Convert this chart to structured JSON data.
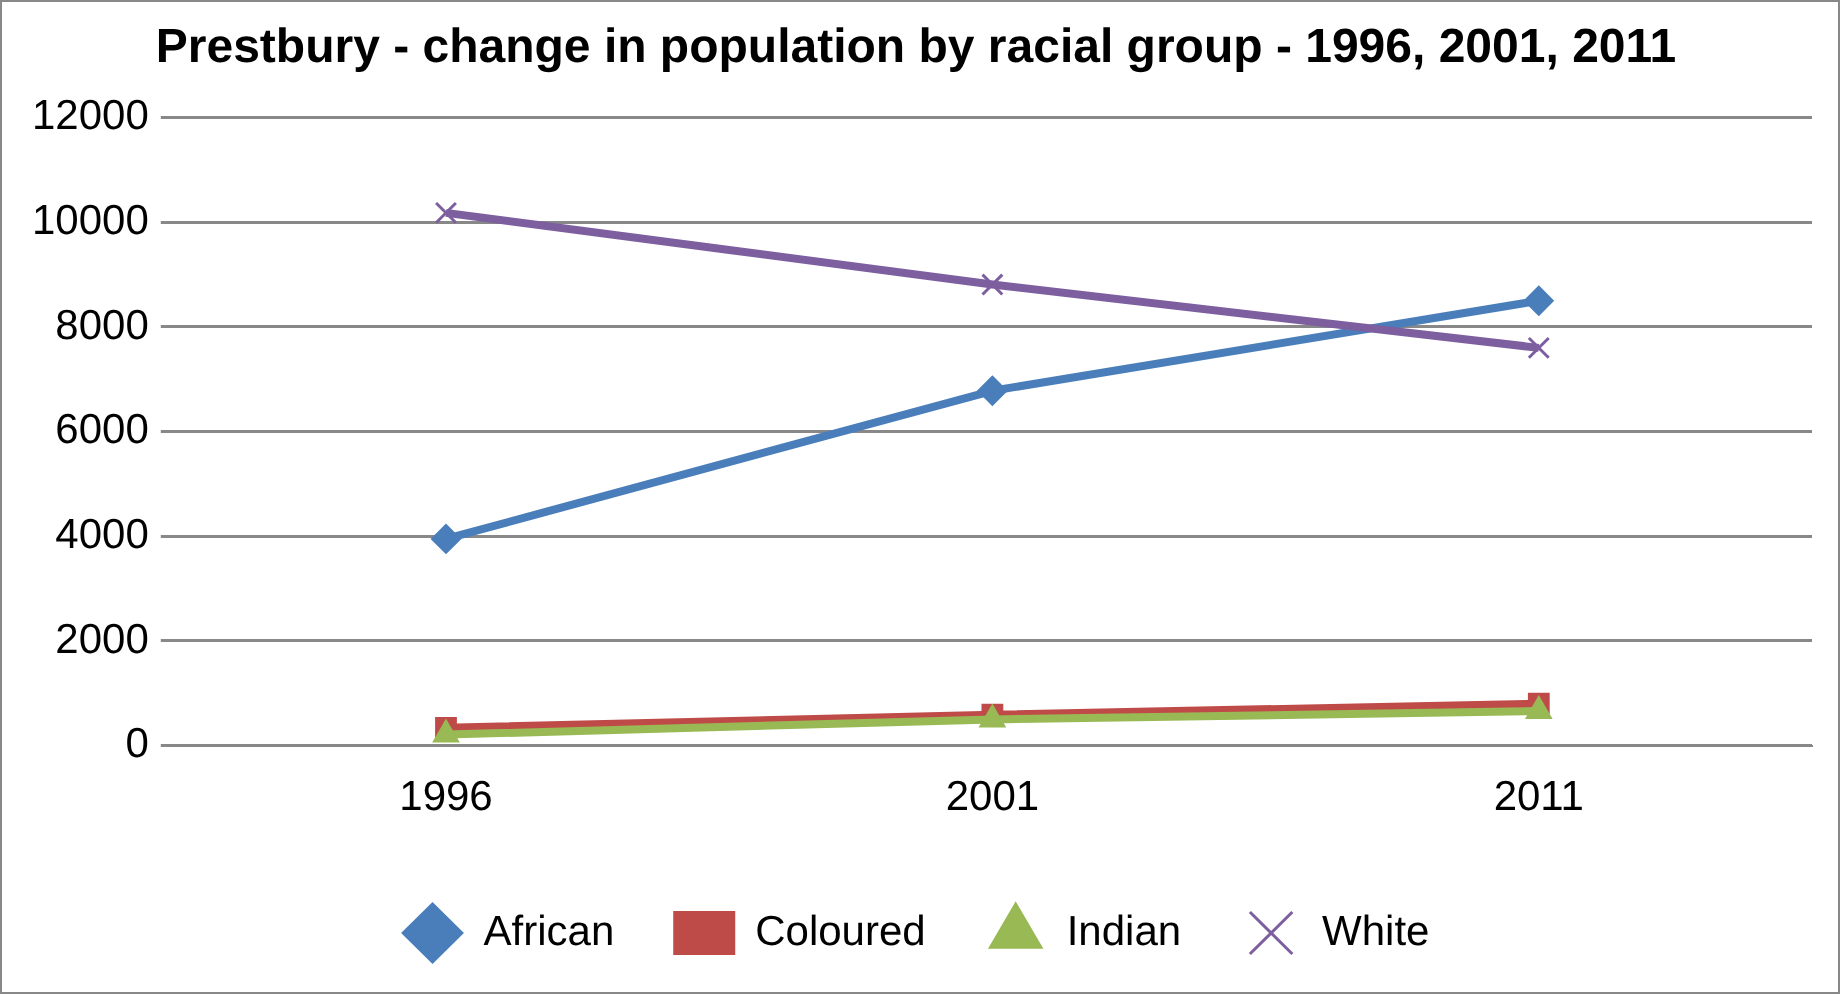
{
  "chart_data": {
    "type": "line",
    "title": "Prestbury - change in population by racial group - 1996, 2001, 2011",
    "categories": [
      "1996",
      "2001",
      "2011"
    ],
    "series": [
      {
        "name": "African",
        "color": "#4a7ebb",
        "marker": "diamond",
        "values": [
          3950,
          6780,
          8500
        ]
      },
      {
        "name": "Coloured",
        "color": "#be4b48",
        "marker": "square",
        "values": [
          340,
          590,
          800
        ]
      },
      {
        "name": "Indian",
        "color": "#98b954",
        "marker": "triangle",
        "values": [
          210,
          500,
          660
        ]
      },
      {
        "name": "White",
        "color": "#7d5fa0",
        "marker": "cross",
        "values": [
          10180,
          8810,
          7600
        ]
      }
    ],
    "ylim": [
      0,
      12000
    ],
    "yticks": [
      0,
      2000,
      4000,
      6000,
      8000,
      10000,
      12000
    ],
    "grid": "y",
    "legend": "bottom"
  }
}
